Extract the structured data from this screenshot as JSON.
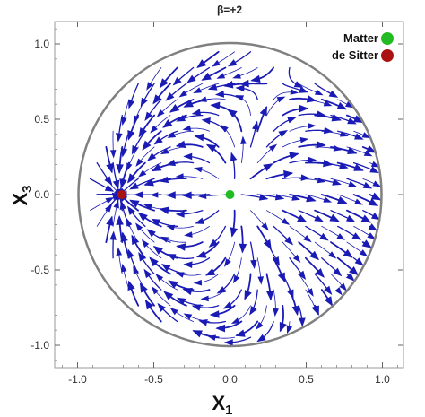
{
  "chart_data": {
    "type": "streamplot",
    "title": "β=+2",
    "xlabel": {
      "main": "X",
      "sub": "1"
    },
    "ylabel": {
      "main": "X",
      "sub": "3"
    },
    "xlim": [
      -1.15,
      1.15
    ],
    "ylim": [
      -1.15,
      1.15
    ],
    "xticks": [
      -1.0,
      -0.5,
      0.0,
      0.5,
      1.0
    ],
    "xtick_labels": [
      "-1.0",
      "-0.5",
      "0.0",
      "0.5",
      "1.0"
    ],
    "yticks": [
      -1.0,
      -0.5,
      0.0,
      0.5,
      1.0
    ],
    "ytick_labels": [
      "-1.0",
      "-0.5",
      "0.0",
      "0.5",
      "1.0"
    ],
    "boundary_circle": {
      "center": [
        0,
        0
      ],
      "radius": 1.0,
      "color": "#808080"
    },
    "stream_color": "#1a1ab4",
    "critical_points": [
      {
        "name": "Matter",
        "x": 0.0,
        "y": 0.0,
        "color": "#22bb22"
      },
      {
        "name": "de Sitter",
        "x": -0.71,
        "y": 0.0,
        "color": "#aa1111"
      }
    ],
    "legend": {
      "position": "top-right",
      "entries": [
        {
          "label": "Matter",
          "color": "#22bb22"
        },
        {
          "label": "de Sitter",
          "color": "#aa1111"
        }
      ]
    },
    "grid": false
  }
}
